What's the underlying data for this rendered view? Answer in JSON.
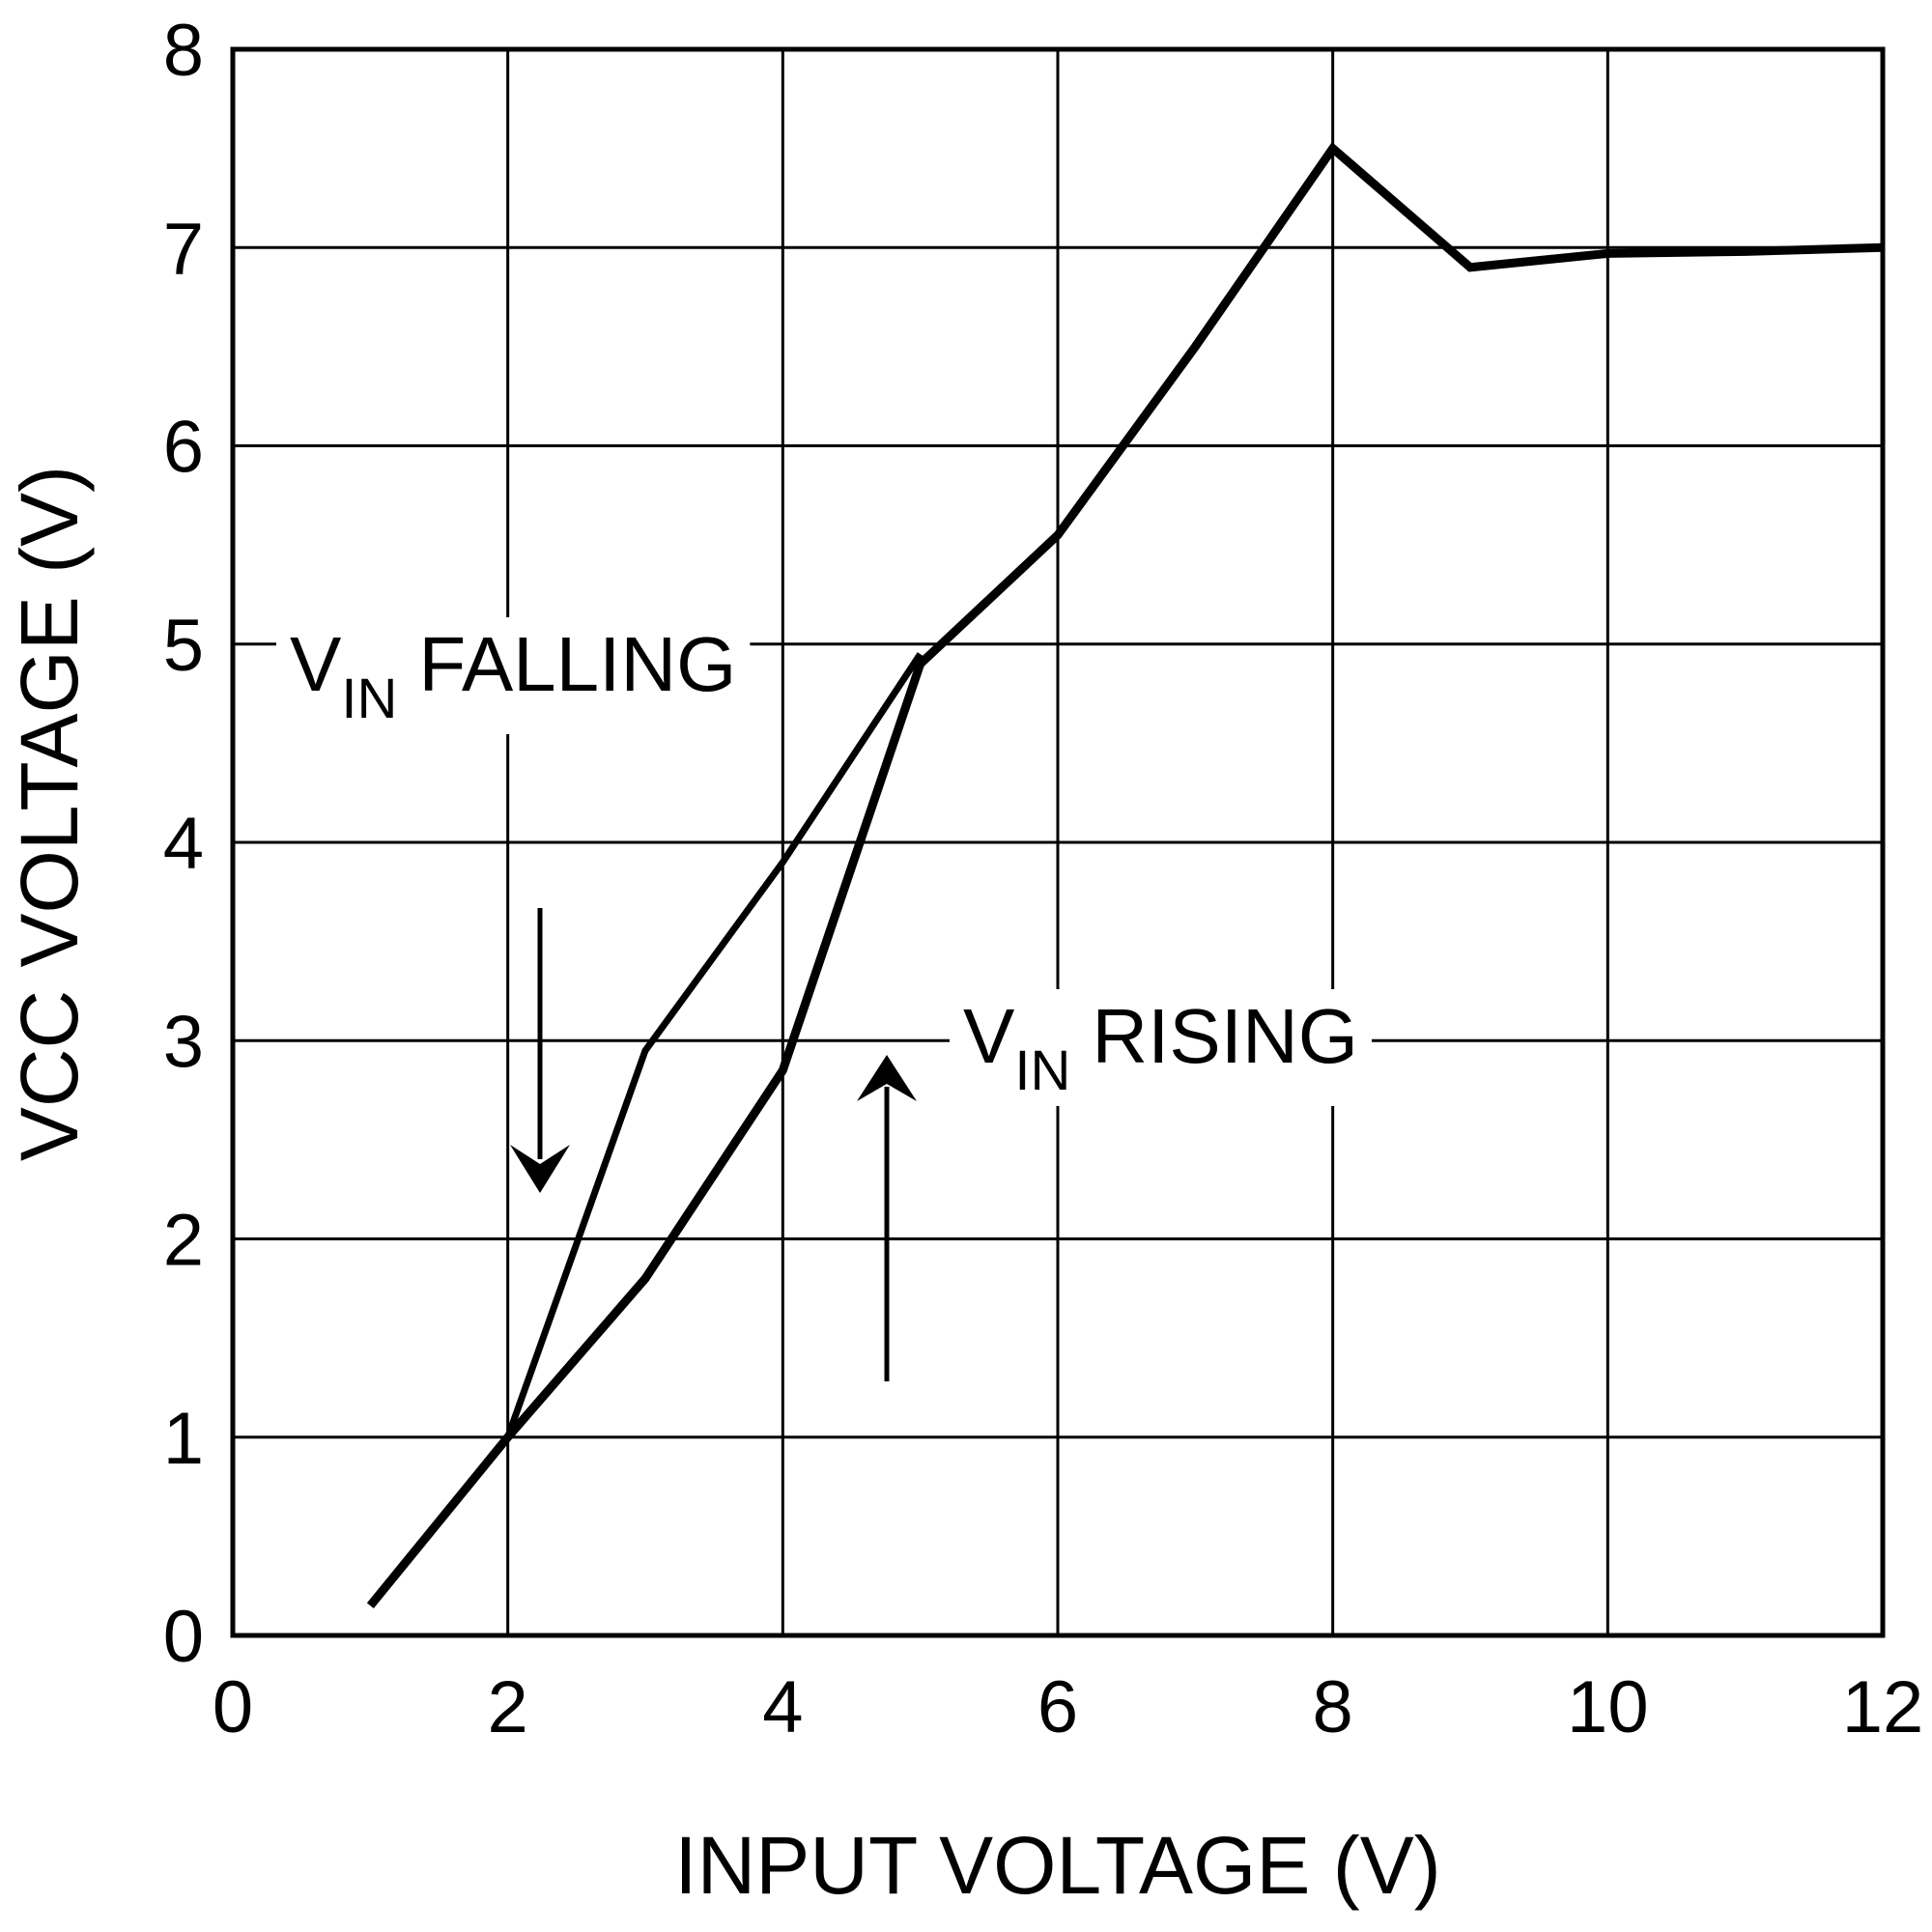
{
  "chart_data": {
    "type": "line",
    "x_label": "INPUT VOLTAGE  (V)",
    "y_label": "VCC VOLTAGE  (V)",
    "x": [
      1,
      2,
      3,
      4,
      5,
      6,
      7,
      8,
      9,
      10,
      11,
      12
    ],
    "series": [
      {
        "color": "#000000",
        "values": [
          0.15,
          1,
          1.8,
          2.85,
          4.9,
          5.55,
          6.5,
          7.5,
          6.9,
          6.97,
          6.98,
          7.0
        ]
      },
      {
        "color": "#000000",
        "values": [
          null,
          1,
          2.95,
          3.9,
          4.95,
          null,
          null,
          null,
          null,
          null,
          null,
          null
        ]
      }
    ],
    "xlim": [
      0,
      12
    ],
    "xticks": [
      0,
      2,
      4,
      6,
      8,
      10,
      12
    ],
    "ylim": [
      0,
      8
    ],
    "yticks": [
      0,
      1,
      2,
      3,
      4,
      5,
      6,
      7,
      8
    ],
    "grid": true,
    "annotations": [
      {
        "main": "V",
        "subscript": "IN",
        "text": "FALLING"
      },
      {
        "main": "V",
        "subscript": "IN",
        "text": "RISING"
      }
    ]
  }
}
